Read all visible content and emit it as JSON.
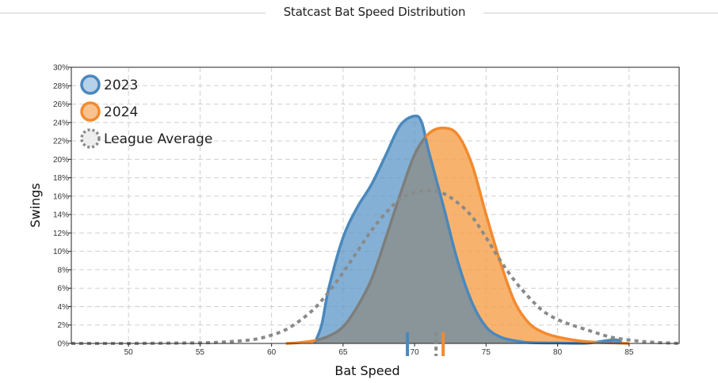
{
  "title": "Statcast Bat Speed Distribution",
  "chart_data": {
    "type": "area",
    "title": "Statcast Bat Speed Distribution",
    "xlabel": "Bat Speed",
    "ylabel": "Swings",
    "xlim": [
      46,
      88.5
    ],
    "ylim": [
      0,
      30
    ],
    "x_ticks": [
      50,
      55,
      60,
      65,
      70,
      75,
      80,
      85
    ],
    "y_ticks": [
      "0%",
      "2%",
      "4%",
      "6%",
      "8%",
      "10%",
      "12%",
      "14%",
      "16%",
      "18%",
      "20%",
      "22%",
      "24%",
      "26%",
      "28%",
      "30%"
    ],
    "legend": [
      "2023",
      "2024",
      "League Average"
    ],
    "colors": {
      "2023": "#5b95c7",
      "2024": "#f5a04a",
      "league": "#8a8a8a",
      "overlap": "#8a9599"
    },
    "series": [
      {
        "name": "2023",
        "x": [
          63,
          63.5,
          64,
          65,
          66,
          67,
          68,
          69,
          70,
          70.5,
          71,
          72,
          73,
          74,
          75,
          76,
          77,
          78,
          80,
          82,
          84,
          84.5
        ],
        "values": [
          0,
          2.0,
          6.0,
          11.5,
          14.8,
          17.3,
          20.5,
          23.7,
          24.7,
          24.0,
          20.8,
          15.0,
          9.0,
          4.5,
          1.8,
          0.7,
          0.3,
          0.1,
          0.05,
          0.02,
          0.4,
          0
        ]
      },
      {
        "name": "2024",
        "x": [
          61,
          62,
          63,
          64,
          65,
          66,
          67,
          68,
          69,
          70,
          71,
          72,
          73,
          74,
          75,
          76,
          77,
          78,
          79,
          80,
          81,
          82,
          83,
          84,
          85
        ],
        "values": [
          0,
          0.1,
          0.3,
          0.8,
          1.8,
          4.0,
          7.0,
          11.5,
          16.2,
          20.5,
          22.8,
          23.4,
          22.7,
          19.5,
          14.0,
          8.8,
          4.5,
          2.2,
          1.2,
          0.7,
          0.4,
          0.2,
          0.1,
          0.05,
          0
        ]
      },
      {
        "name": "League Average",
        "x": [
          46,
          50,
          54,
          56,
          58,
          59,
          60,
          61,
          62,
          63,
          64,
          65,
          66,
          67,
          68,
          69,
          70,
          71,
          72,
          73,
          74,
          75,
          76,
          77,
          78,
          79,
          80,
          81,
          82,
          83,
          84,
          86,
          88.5
        ],
        "values": [
          0,
          0,
          0.05,
          0.1,
          0.3,
          0.5,
          0.9,
          1.5,
          2.5,
          3.8,
          5.6,
          7.7,
          10.0,
          12.3,
          14.2,
          15.7,
          16.4,
          16.6,
          16.3,
          15.3,
          13.8,
          11.5,
          9.0,
          6.8,
          5.0,
          3.5,
          2.6,
          2.0,
          1.5,
          1.0,
          0.6,
          0.2,
          0
        ]
      }
    ],
    "markers": [
      {
        "name": "2023",
        "x": 69.5
      },
      {
        "name": "2024",
        "x": 72.0
      },
      {
        "name": "League Average",
        "x": 71.5
      }
    ]
  }
}
